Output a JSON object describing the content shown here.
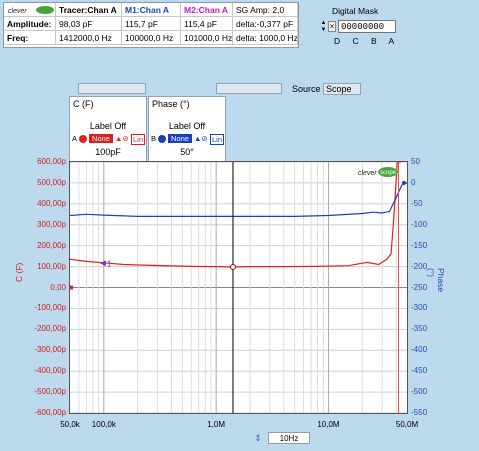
{
  "measurements": {
    "headers": [
      "Tracer:Chan A",
      "M1:Chan A",
      "M2:Chan A",
      "SG Amp: 2,0"
    ],
    "header_colors": [
      "#000000",
      "#1a40c0",
      "#c020c0",
      "#000000"
    ],
    "rows": [
      {
        "label": "Amplitude:",
        "values": [
          "98,03 pF",
          "115,7 pF",
          "115,4 pF",
          "delta:-0,377 pF"
        ]
      },
      {
        "label": "Freq:",
        "values": [
          "1412000,0 Hz",
          "100000,0 Hz",
          "101000,0 Hz",
          "delta: 1000,0 Hz"
        ]
      }
    ],
    "logo_text": "clever"
  },
  "digital_mask": {
    "title": "Digital Mask",
    "value": "00000000",
    "letters": "D C B A",
    "clear_label": "×"
  },
  "source": {
    "label": "Source",
    "value": "Scope"
  },
  "channels": [
    {
      "title": "C (F)",
      "label_mode": "Label Off",
      "letter": "A",
      "filter": "None",
      "scale": "Lin",
      "value": "100pF",
      "color": "#e02020"
    },
    {
      "title": "Phase (°)",
      "label_mode": "Label Off",
      "letter": "B",
      "filter": "None",
      "scale": "Lin",
      "value": "50°",
      "color": "#1a40c0"
    }
  ],
  "chart_data": {
    "type": "line",
    "x_scale": "log",
    "xlim": [
      50000,
      50000000
    ],
    "x_ticks": [
      "50,0k",
      "100,0k",
      "1,0M",
      "10,0M",
      "50,0M"
    ],
    "y_left_ticks": [
      "600,00p",
      "500,00p",
      "400,00p",
      "300,00p",
      "200,00p",
      "100,00p",
      "0,00",
      "-100,00p",
      "-200,00p",
      "-300,00p",
      "-400,00p",
      "-500,00p",
      "-600,00p"
    ],
    "ylim_left": [
      -600,
      600
    ],
    "y_right_ticks": [
      "50",
      "0",
      "-50",
      "-100",
      "-150",
      "-200",
      "-250",
      "-300",
      "-350",
      "-400",
      "-450",
      "-500",
      "-550"
    ],
    "ylim_right": [
      -550,
      50
    ],
    "ylabel_left": "C (F)",
    "ylabel_right": "Phase (°)",
    "marker_label": "1",
    "series": [
      {
        "name": "C (F)",
        "color": "#e02020",
        "axis": "left",
        "x": [
          50000,
          70000,
          100000,
          150000,
          300000,
          600000,
          1000000,
          1412000,
          2000000,
          4000000,
          8000000,
          15000000,
          22000000,
          28000000,
          33000000,
          36000000,
          38000000,
          41000000,
          44000000
        ],
        "y": [
          135,
          125,
          118,
          110,
          105,
          101,
          100,
          98,
          100,
          100,
          101,
          104,
          120,
          110,
          135,
          160,
          320,
          600,
          600
        ]
      },
      {
        "name": "Phase (°)",
        "color": "#1a40c0",
        "axis": "right",
        "x": [
          50000,
          70000,
          100000,
          200000,
          500000,
          1000000,
          2000000,
          5000000,
          10000000,
          20000000,
          25000000,
          30000000,
          35000000,
          40000000,
          45000000,
          50000000
        ],
        "y": [
          -78,
          -75,
          -77,
          -80,
          -80,
          -80,
          -80,
          -80,
          -78,
          -73,
          -70,
          -72,
          -68,
          -35,
          -5,
          0
        ]
      }
    ]
  },
  "bottom": {
    "freq_field": "10Hz"
  },
  "logo": {
    "text_top": "clever",
    "text_bottom": "scope"
  }
}
